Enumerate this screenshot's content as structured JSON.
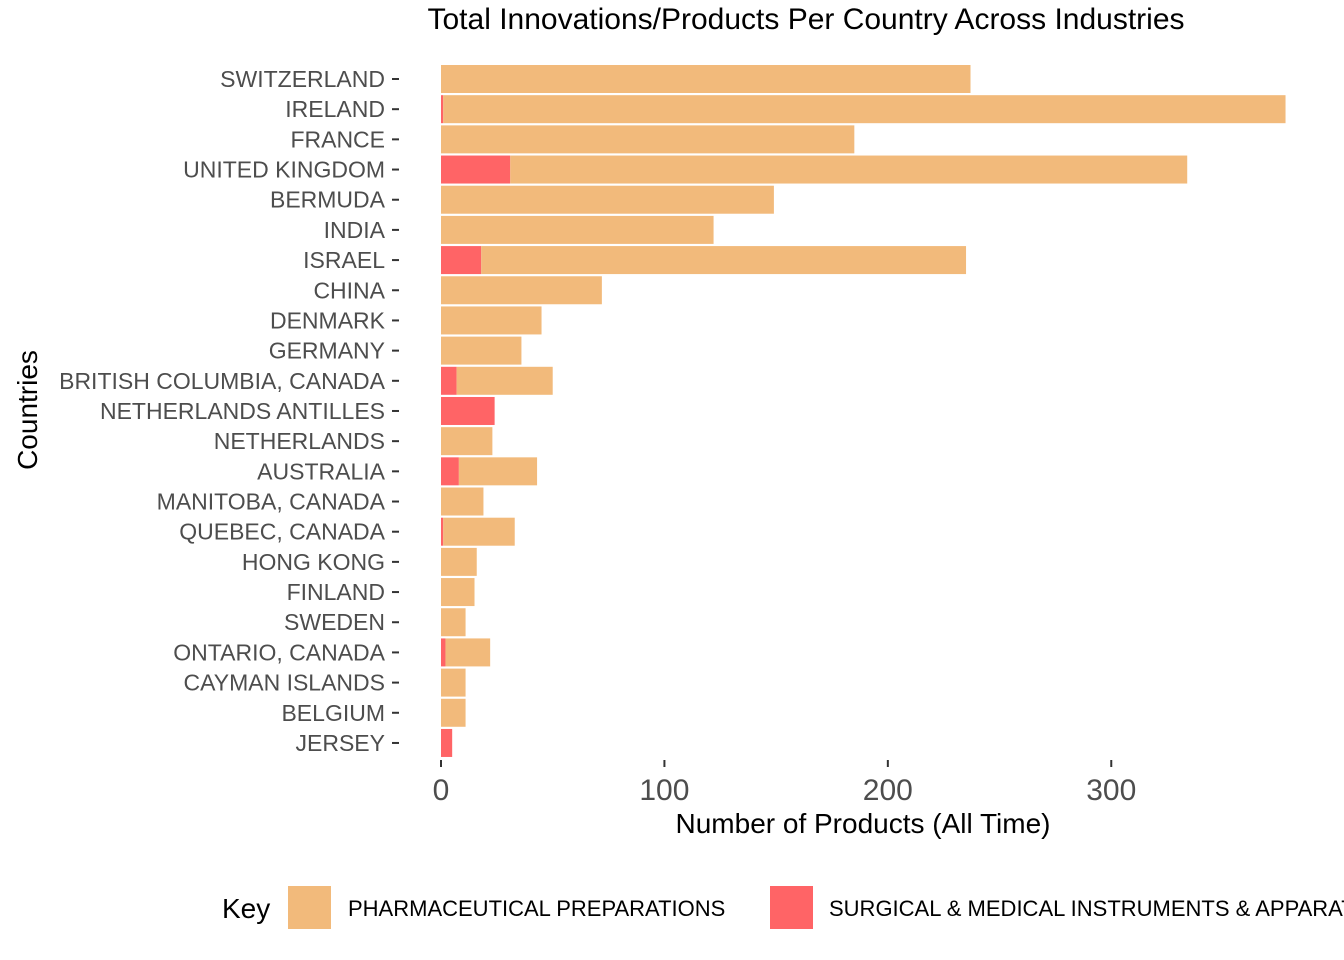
{
  "chart_data": {
    "type": "bar",
    "orientation": "horizontal",
    "stacked": true,
    "title": "Total Innovations/Products Per Country Across Industries",
    "xlabel": "Number of Products (All Time)",
    "ylabel": "Countries",
    "xlim": [
      0,
      380
    ],
    "x_ticks": [
      0,
      100,
      200,
      300
    ],
    "grid": false,
    "legend_position": "bottom",
    "legend_title": "Key",
    "categories": [
      "SWITZERLAND",
      "IRELAND",
      "FRANCE",
      "UNITED KINGDOM",
      "BERMUDA",
      "INDIA",
      "ISRAEL",
      "CHINA",
      "DENMARK",
      "GERMANY",
      "BRITISH COLUMBIA, CANADA",
      "NETHERLANDS ANTILLES",
      "NETHERLANDS",
      "AUSTRALIA",
      "MANITOBA, CANADA",
      "QUEBEC, CANADA",
      "HONG KONG",
      "FINLAND",
      "SWEDEN",
      "ONTARIO, CANADA",
      "CAYMAN ISLANDS",
      "BELGIUM",
      "JERSEY"
    ],
    "series": [
      {
        "name": "SURGICAL & MEDICAL INSTRUMENTS & APPARATUS",
        "color": "#ff6466",
        "values": [
          0,
          1,
          0,
          31,
          0,
          0,
          18,
          0,
          0,
          0,
          7,
          24,
          0,
          8,
          0,
          1,
          0,
          0,
          0,
          2,
          0,
          0,
          5
        ]
      },
      {
        "name": "PHARMACEUTICAL PREPARATIONS",
        "color": "#f2ba7b",
        "values": [
          237,
          377,
          185,
          303,
          149,
          122,
          217,
          72,
          45,
          36,
          43,
          0,
          23,
          35,
          19,
          32,
          16,
          15,
          11,
          20,
          11,
          11,
          0
        ]
      }
    ],
    "legend_order": [
      "PHARMACEUTICAL PREPARATIONS",
      "SURGICAL & MEDICAL INSTRUMENTS & APPARATUS"
    ]
  }
}
